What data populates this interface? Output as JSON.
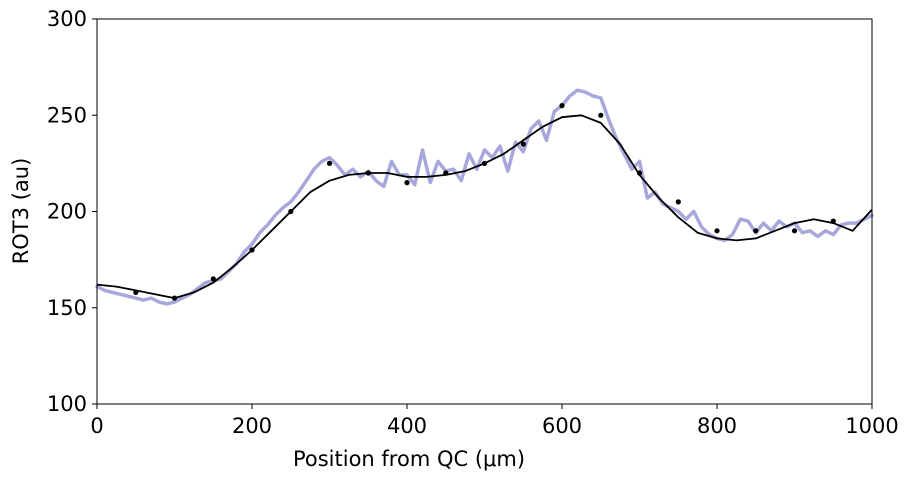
{
  "chart_data": {
    "type": "line",
    "title": "",
    "xlabel": "Position from QC (μm)",
    "ylabel": "ROT3 (au)",
    "xlim": [
      0,
      1000
    ],
    "ylim": [
      100,
      300
    ],
    "xticks": [
      0,
      200,
      400,
      600,
      800,
      1000
    ],
    "yticks": [
      100,
      150,
      200,
      250,
      300
    ],
    "grid": false,
    "legend": "none",
    "series": [
      {
        "kind": "noisy-profile",
        "color": "#a7a7db",
        "x": [
          0,
          10,
          20,
          30,
          40,
          50,
          60,
          70,
          80,
          90,
          100,
          110,
          120,
          130,
          140,
          150,
          160,
          170,
          180,
          190,
          200,
          210,
          220,
          230,
          240,
          250,
          260,
          270,
          280,
          290,
          300,
          310,
          320,
          330,
          340,
          350,
          360,
          370,
          380,
          390,
          400,
          410,
          420,
          430,
          440,
          450,
          460,
          470,
          480,
          490,
          500,
          510,
          520,
          530,
          540,
          550,
          560,
          570,
          580,
          590,
          600,
          610,
          620,
          630,
          640,
          650,
          660,
          670,
          680,
          690,
          700,
          710,
          720,
          730,
          740,
          750,
          760,
          770,
          780,
          790,
          800,
          810,
          820,
          830,
          840,
          850,
          860,
          870,
          880,
          890,
          900,
          910,
          920,
          930,
          940,
          950,
          960,
          970,
          980,
          990,
          1000
        ],
        "y": [
          161,
          159,
          158,
          157,
          156,
          155,
          154,
          155,
          153,
          152,
          153,
          155,
          157,
          160,
          163,
          164,
          165,
          169,
          173,
          179,
          183,
          189,
          193,
          198,
          202,
          205,
          210,
          216,
          222,
          226,
          228,
          224,
          219,
          222,
          218,
          221,
          216,
          213,
          226,
          219,
          219,
          214,
          232,
          215,
          226,
          221,
          222,
          216,
          230,
          222,
          232,
          228,
          234,
          221,
          236,
          231,
          243,
          247,
          237,
          252,
          255,
          260,
          263,
          262,
          260,
          259,
          248,
          238,
          230,
          222,
          226,
          207,
          210,
          204,
          202,
          200,
          196,
          200,
          192,
          188,
          186,
          185,
          188,
          196,
          195,
          189,
          194,
          190,
          195,
          192,
          194,
          189,
          190,
          187,
          190,
          188,
          193,
          194,
          194,
          196,
          198
        ]
      },
      {
        "kind": "smooth-fit",
        "color": "#000000",
        "x": [
          0,
          25,
          50,
          75,
          100,
          125,
          150,
          175,
          200,
          225,
          250,
          275,
          300,
          325,
          350,
          375,
          400,
          425,
          450,
          475,
          500,
          525,
          550,
          575,
          600,
          625,
          650,
          675,
          700,
          725,
          750,
          775,
          800,
          825,
          850,
          875,
          900,
          925,
          950,
          975,
          1000
        ],
        "y": [
          162,
          161,
          159,
          157,
          155,
          158,
          163,
          171,
          180,
          190,
          200,
          210,
          216,
          219,
          220,
          220,
          218,
          218,
          219,
          221,
          225,
          230,
          237,
          244,
          249,
          250,
          246,
          235,
          219,
          207,
          197,
          189,
          186,
          185,
          186,
          190,
          194,
          196,
          194,
          190,
          201
        ]
      },
      {
        "kind": "points",
        "color": "#000000",
        "x": [
          50,
          100,
          150,
          200,
          250,
          300,
          350,
          400,
          450,
          500,
          550,
          600,
          650,
          700,
          750,
          800,
          850,
          900,
          950
        ],
        "y": [
          158,
          155,
          165,
          180,
          200,
          225,
          220,
          215,
          220,
          225,
          235,
          255,
          250,
          220,
          205,
          190,
          190,
          190,
          195
        ]
      }
    ]
  }
}
